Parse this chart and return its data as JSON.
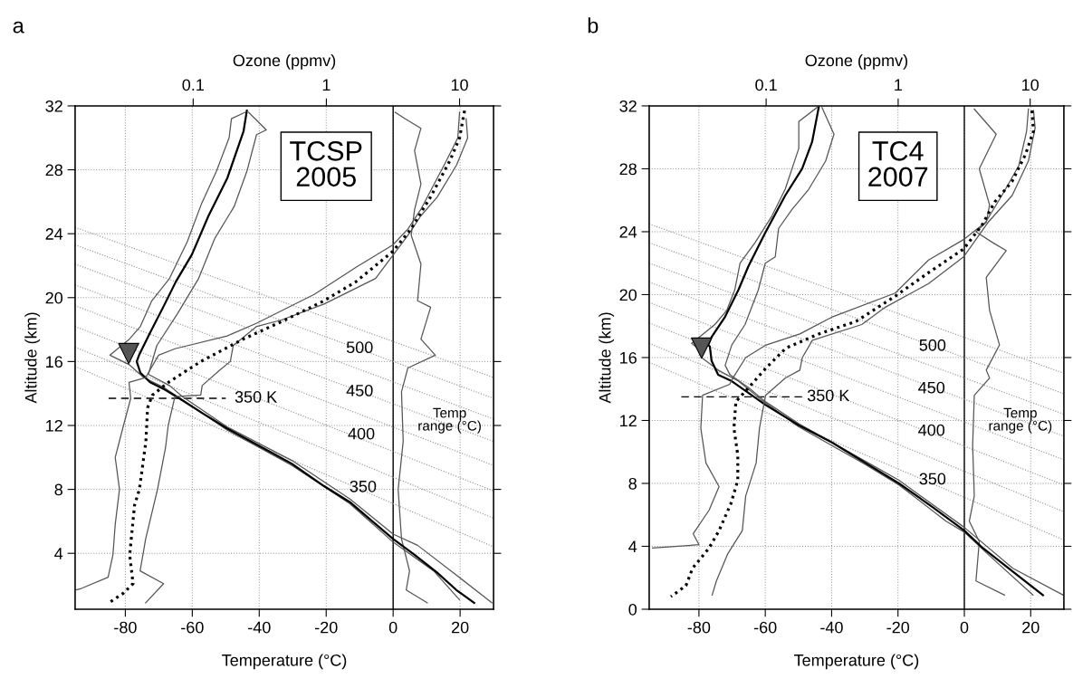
{
  "chart_data": [
    {
      "type": "line",
      "title": "a",
      "xlabel": "Temperature (°C)",
      "ylabel": "Altitude (km)",
      "x2label": "Ozone (ppmv)",
      "xlim": [
        -95,
        30
      ],
      "xticks": [
        -80,
        -60,
        -40,
        -20,
        0,
        20
      ],
      "ylim": [
        0.5,
        32
      ],
      "yticks": [
        4,
        8,
        12,
        16,
        20,
        24,
        28,
        32
      ],
      "x2lim": [
        0.013,
        18
      ],
      "x2ticks": [
        0.1,
        1,
        10
      ],
      "log": "x2",
      "grid": true,
      "ref_lines": [
        {
          "axis": "x",
          "value": 0,
          "color": "#000000",
          "line_style": "solid"
        }
      ],
      "annotations": [
        "TCSP\n2005",
        "Temp\nrange (°C)",
        {
          "text": "350 K",
          "x": -41,
          "y": 13.7
        },
        {
          "text": "350",
          "x": -9,
          "y": 8.1
        },
        {
          "text": "400",
          "x": -9.5,
          "y": 11.4
        },
        {
          "text": "450",
          "x": -10,
          "y": 14.1
        },
        {
          "text": "500",
          "x": -10,
          "y": 16.8
        }
      ],
      "series": [
        {
          "color": "#999999",
          "line_style": "dotted",
          "x": [
            -95,
            30
          ],
          "values": [
            15.7,
            4.4
          ]
        },
        {
          "color": "#999999",
          "line_style": "dotted",
          "x": [
            -95,
            30
          ],
          "values": [
            16.9,
            6.2
          ]
        },
        {
          "color": "#999999",
          "line_style": "dotted",
          "x": [
            -95,
            30
          ],
          "values": [
            18.2,
            7.9
          ]
        },
        {
          "color": "#999999",
          "line_style": "dotted",
          "x": [
            -95,
            30
          ],
          "values": [
            19.5,
            9.5
          ]
        },
        {
          "color": "#999999",
          "line_style": "dotted",
          "x": [
            -95,
            30
          ],
          "values": [
            20.8,
            11.0
          ]
        },
        {
          "color": "#999999",
          "line_style": "dotted",
          "x": [
            -95,
            30
          ],
          "values": [
            22.1,
            12.4
          ]
        },
        {
          "color": "#999999",
          "line_style": "dotted",
          "x": [
            -95,
            30
          ],
          "values": [
            23.3,
            13.7
          ]
        },
        {
          "color": "#999999",
          "line_style": "dotted",
          "x": [
            -95,
            30
          ],
          "values": [
            24.4,
            15.0
          ]
        },
        {
          "color": "#000000",
          "line_style": "dashed",
          "x": [
            -85,
            -50
          ],
          "values": [
            13.7,
            13.7
          ]
        },
        {
          "color": "#555555",
          "x": [
            0.6,
            3.5,
            8.3,
            6.4,
            8.3,
            6.4,
            5.4,
            8.3,
            7.3,
            11.2,
            8.3,
            12.6,
            4.4,
            2.5,
            3.0,
            1.5,
            2.5,
            4.9,
            3.9,
            10.2
          ],
          "values": [
            31.6,
            31.2,
            30.6,
            29.2,
            27.1,
            25.5,
            23.9,
            22.1,
            19.8,
            19.4,
            17.4,
            16.4,
            15.6,
            14.1,
            11.0,
            8.0,
            4.9,
            2.9,
            1.7,
            0.9
          ]
        },
        {
          "color": "#555555",
          "x": [
            -44.2,
            -48.3,
            -49.0,
            -52.8,
            -57.2,
            -61.5,
            -66.8,
            -72.1,
            -75.5,
            -78.8,
            -84.6,
            -78.8,
            -74.5,
            -68.7,
            -62.9,
            -49.5,
            -30.2,
            -12.9,
            0,
            12.1,
            19.8
          ],
          "values": [
            31.6,
            31.2,
            30.0,
            27.9,
            25.9,
            23.5,
            21.2,
            19.8,
            18.2,
            17.4,
            16.4,
            15.8,
            15.0,
            14.4,
            13.6,
            11.7,
            9.5,
            7.1,
            4.7,
            2.9,
            1.1
          ]
        },
        {
          "color": "#555555",
          "x": [
            -43.2,
            -37.9,
            -40.8,
            -43.7,
            -47.5,
            -53.3,
            -58.1,
            -64.4,
            -70.6,
            -73.1,
            -66.8,
            -62.9,
            -49.5,
            -30.2,
            -12.9,
            0,
            7.3,
            17.9,
            29.5
          ],
          "values": [
            31.6,
            30.5,
            30.2,
            27.9,
            25.7,
            23.7,
            21.2,
            19.0,
            17.0,
            15.2,
            14.5,
            13.8,
            11.9,
            9.8,
            7.4,
            5.2,
            4.5,
            2.8,
            0.9
          ]
        },
        {
          "color": "#000000",
          "x": [
            -43.7,
            -44.7,
            -49.5,
            -55.2,
            -60.1,
            -64.9,
            -68.7,
            -72.6,
            -75.9,
            -76.6,
            -75.5,
            -72.6,
            -68.7,
            -63.9,
            -57.2,
            -49.5,
            -39.8,
            -30.2,
            -20.6,
            -12.9,
            -6.2,
            0,
            6.4,
            13.1,
            18.9,
            24.2
          ],
          "values": [
            31.7,
            30.4,
            27.5,
            25.1,
            22.7,
            21.0,
            19.4,
            17.8,
            16.4,
            16.0,
            15.3,
            14.7,
            14.3,
            13.7,
            12.8,
            11.8,
            10.7,
            9.6,
            8.2,
            7.2,
            6.0,
            4.9,
            3.9,
            2.8,
            1.7,
            0.9
          ]
        },
        {
          "color": "#555555",
          "axis": "x2",
          "x": [
            10.0,
            9.7,
            8.0,
            5.1,
            4.1,
            3.16,
            1.67,
            0.81,
            0.3,
            0.18,
            0.073,
            0.055,
            0.044,
            0.033,
            0.034,
            0.03,
            0.026,
            0.028,
            0.026,
            0.025,
            0.023,
            0.0145,
            0.0131
          ],
          "values": [
            31.6,
            30.0,
            28.6,
            25.5,
            24.3,
            23.3,
            21.9,
            20.2,
            18.4,
            17.6,
            16.8,
            16.4,
            15.0,
            14.7,
            13.7,
            12.0,
            10.0,
            8.0,
            5.8,
            3.9,
            2.5,
            1.8,
            1.7
          ]
        },
        {
          "color": "#555555",
          "axis": "x2",
          "x": [
            11.2,
            11.5,
            9.5,
            6.8,
            5.1,
            4.1,
            2.34,
            0.96,
            0.46,
            0.3,
            0.2,
            0.19,
            0.16,
            0.117,
            0.114,
            0.073,
            0.065,
            0.062,
            0.054,
            0.044,
            0.04,
            0.06,
            0.044
          ],
          "values": [
            31.2,
            30.0,
            28.3,
            26.3,
            25.1,
            23.9,
            21.2,
            19.6,
            18.6,
            18.2,
            17.0,
            16.0,
            15.5,
            14.5,
            13.9,
            13.8,
            12.0,
            10.6,
            8.0,
            4.9,
            2.9,
            2.1,
            0.9
          ]
        },
        {
          "color": "#000000",
          "axis": "x2",
          "line_style": "dotted",
          "x": [
            10.9,
            10.0,
            8.5,
            6.05,
            4.32,
            3.16,
            1.67,
            0.96,
            0.49,
            0.237,
            0.114,
            0.0654,
            0.0494,
            0.0455,
            0.0442,
            0.0395,
            0.0363,
            0.0334,
            0.0354,
            0.0299,
            0.0233
          ],
          "values": [
            31.7,
            30.0,
            28.6,
            26.3,
            24.3,
            22.9,
            21.0,
            19.8,
            18.6,
            17.4,
            16.0,
            14.7,
            13.9,
            13.1,
            11.0,
            8.0,
            7.0,
            3.9,
            2.1,
            1.5,
            0.9
          ]
        },
        {
          "type": "scatter",
          "color": "#555555",
          "marker": "triangle",
          "x": [
            -79.0
          ],
          "values": [
            16.5
          ]
        }
      ]
    },
    {
      "type": "line",
      "title": "b",
      "xlabel": "Temperature (°C)",
      "ylabel": "Altitude (km)",
      "x2label": "Ozone (ppmv)",
      "xlim": [
        -95,
        30
      ],
      "xticks": [
        -80,
        -60,
        -40,
        -20,
        0,
        20
      ],
      "ylim": [
        0,
        32
      ],
      "yticks": [
        0,
        4,
        8,
        12,
        16,
        20,
        24,
        28,
        32
      ],
      "x2lim": [
        0.013,
        18
      ],
      "x2ticks": [
        0.1,
        1,
        10
      ],
      "log": "x2",
      "grid": true,
      "ref_lines": [
        {
          "axis": "x",
          "value": 0,
          "color": "#000000",
          "line_style": "solid"
        }
      ],
      "annotations": [
        "TC4\n2007",
        "Temp\nrange (°C)",
        {
          "text": "350 K",
          "x": -41,
          "y": 13.5
        },
        {
          "text": "350",
          "x": -9.6,
          "y": 8.2
        },
        {
          "text": "400",
          "x": -9.9,
          "y": 11.3
        },
        {
          "text": "450",
          "x": -9.9,
          "y": 14.0
        },
        {
          "text": "500",
          "x": -9.6,
          "y": 16.7
        }
      ],
      "series": [
        {
          "color": "#999999",
          "line_style": "dotted",
          "x": [
            -95,
            30
          ],
          "values": [
            15.7,
            4.4
          ]
        },
        {
          "color": "#999999",
          "line_style": "dotted",
          "x": [
            -95,
            30
          ],
          "values": [
            16.9,
            6.2
          ]
        },
        {
          "color": "#999999",
          "line_style": "dotted",
          "x": [
            -95,
            30
          ],
          "values": [
            18.2,
            7.9
          ]
        },
        {
          "color": "#999999",
          "line_style": "dotted",
          "x": [
            -95,
            30
          ],
          "values": [
            19.5,
            9.5
          ]
        },
        {
          "color": "#999999",
          "line_style": "dotted",
          "x": [
            -95,
            30
          ],
          "values": [
            20.8,
            11.0
          ]
        },
        {
          "color": "#999999",
          "line_style": "dotted",
          "x": [
            -95,
            30
          ],
          "values": [
            22.0,
            12.4
          ]
        },
        {
          "color": "#999999",
          "line_style": "dotted",
          "x": [
            -95,
            30
          ],
          "values": [
            23.3,
            13.7
          ]
        },
        {
          "color": "#999999",
          "line_style": "dotted",
          "x": [
            -95,
            30
          ],
          "values": [
            24.5,
            15.0
          ]
        },
        {
          "color": "#000000",
          "line_style": "dashed",
          "x": [
            -85.3,
            -48.9
          ],
          "values": [
            13.5,
            13.5
          ]
        },
        {
          "color": "#555555",
          "x": [
            3.0,
            9.6,
            4.5,
            7.6,
            6.6,
            3.5,
            8.6,
            12.6,
            6.6,
            7.6,
            10.6,
            6.6,
            7.6,
            3.0,
            2.5,
            3.0,
            1.5,
            4.5,
            3.5,
            12.1
          ],
          "values": [
            31.8,
            30.2,
            28.0,
            25.7,
            24.6,
            24.0,
            23.3,
            22.8,
            21.1,
            19.0,
            16.8,
            15.2,
            14.7,
            13.6,
            10.4,
            7.2,
            5.6,
            4.3,
            1.8,
            0.9
          ]
        },
        {
          "color": "#555555",
          "x": [
            -44.4,
            -49.9,
            -49.9,
            -54.0,
            -58.0,
            -63.1,
            -67.6,
            -69.2,
            -71.6,
            -75.2,
            -82.2,
            -79.2,
            -79.2,
            -74.2,
            -68.1,
            -61.1,
            -49.9,
            -29.8,
            -19.7,
            -5.5,
            0,
            7.6,
            20.7
          ],
          "values": [
            31.9,
            31.0,
            29.3,
            26.7,
            25.0,
            23.3,
            22.0,
            20.3,
            19.0,
            18.1,
            16.9,
            16.4,
            16.0,
            15.2,
            14.5,
            13.3,
            11.6,
            9.2,
            7.9,
            5.6,
            4.9,
            3.4,
            0.9
          ]
        },
        {
          "color": "#555555",
          "x": [
            -42.9,
            -39.3,
            -41.8,
            -46.9,
            -52.0,
            -56.0,
            -57.0,
            -60.0,
            -62.1,
            -66.1,
            -70.1,
            -72.1,
            -70.6,
            -65.1,
            -60.0,
            -49.9,
            -29.8,
            -19.7,
            0,
            14.6,
            29.8
          ],
          "values": [
            31.9,
            30.2,
            28.5,
            26.7,
            25.4,
            24.2,
            22.4,
            22.0,
            20.3,
            18.1,
            16.8,
            15.5,
            14.9,
            14.1,
            13.2,
            11.8,
            9.4,
            8.2,
            5.2,
            2.6,
            0.9
          ]
        },
        {
          "color": "#000000",
          "x": [
            -43.9,
            -45.9,
            -48.9,
            -54.0,
            -60.1,
            -65.1,
            -68.1,
            -72.1,
            -76.2,
            -77.2,
            -76.7,
            -76.2,
            -74.2,
            -70.1,
            -66.1,
            -60.0,
            -49.9,
            -39.9,
            -29.8,
            -19.7,
            -9.6,
            0,
            5.5,
            14.6,
            23.7
          ],
          "values": [
            31.9,
            29.7,
            28.0,
            26.3,
            23.9,
            21.8,
            20.3,
            18.6,
            17.3,
            16.8,
            16.7,
            15.8,
            14.9,
            14.5,
            13.9,
            13.0,
            11.7,
            10.6,
            9.3,
            8.0,
            6.5,
            5.0,
            3.9,
            2.4,
            0.9
          ]
        },
        {
          "color": "#555555",
          "axis": "x2",
          "x": [
            9.7,
            9.4,
            8.2,
            6.1,
            4.6,
            3.13,
            1.7,
            0.95,
            0.32,
            0.18,
            0.1,
            0.07,
            0.056,
            0.053,
            0.033,
            0.032,
            0.035,
            0.044,
            0.037,
            0.028,
            0.031,
            0.0138
          ],
          "values": [
            31.8,
            30.4,
            28.2,
            26.3,
            24.6,
            23.5,
            22.2,
            20.1,
            18.6,
            17.5,
            16.8,
            16.0,
            14.7,
            14.3,
            13.6,
            11.5,
            9.3,
            7.8,
            6.3,
            4.8,
            4.1,
            3.9
          ]
        },
        {
          "color": "#555555",
          "axis": "x2",
          "x": [
            10.6,
            10.9,
            9.7,
            7.3,
            4.8,
            3.13,
            1.7,
            0.8,
            0.53,
            0.224,
            0.188,
            0.18,
            0.14,
            0.099,
            0.089,
            0.084,
            0.07,
            0.066,
            0.051,
            0.042,
            0.039
          ],
          "values": [
            31.7,
            30.6,
            28.5,
            26.3,
            24.6,
            22.4,
            20.7,
            19.2,
            18.1,
            17.1,
            16.0,
            15.2,
            14.7,
            13.6,
            11.5,
            9.3,
            7.2,
            5.0,
            3.5,
            1.8,
            0.9
          ]
        },
        {
          "color": "#000000",
          "axis": "x2",
          "line_style": "dotted",
          "x": [
            10.3,
            10.6,
            9.2,
            7.3,
            5.4,
            4.3,
            3.13,
            1.7,
            0.95,
            0.48,
            0.25,
            0.141,
            0.099,
            0.074,
            0.059,
            0.057,
            0.061,
            0.061,
            0.054,
            0.044,
            0.037,
            0.0277,
            0.0247,
            0.019
          ],
          "values": [
            31.7,
            30.4,
            28.9,
            27.2,
            25.9,
            24.4,
            22.9,
            21.4,
            19.9,
            18.3,
            17.5,
            16.6,
            15.3,
            14.1,
            13.2,
            11.5,
            9.8,
            8.2,
            6.7,
            5.0,
            3.9,
            2.6,
            1.5,
            0.8
          ]
        },
        {
          "type": "scatter",
          "color": "#555555",
          "marker": "triangle",
          "x": [
            -79.2
          ],
          "values": [
            16.6
          ]
        }
      ]
    }
  ]
}
